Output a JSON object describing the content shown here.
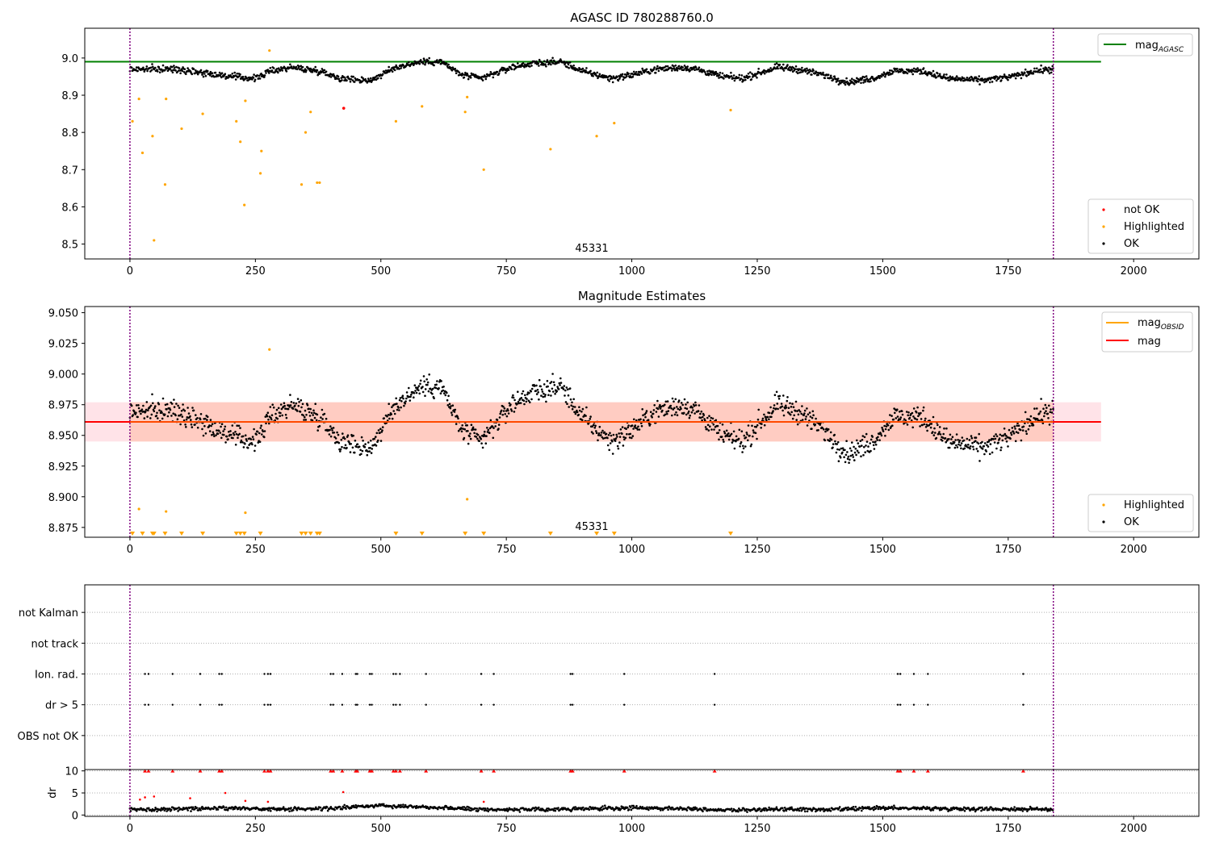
{
  "chart_data": [
    {
      "type": "scatter",
      "title": "AGASC ID 780288760.0",
      "xlabel": "",
      "ylabel": "",
      "xlim": [
        -90,
        2130
      ],
      "ylim": [
        8.46,
        9.08
      ],
      "x_ticks": [
        "0",
        "250",
        "500",
        "750",
        "1000",
        "1250",
        "1500",
        "1750",
        "2000"
      ],
      "y_ticks": [
        "8.5",
        "8.6",
        "8.7",
        "8.8",
        "8.9",
        "9.0"
      ],
      "obsid_label": "45331",
      "obsid_label_x": 920,
      "vertical_lines": [
        0,
        1840
      ],
      "reference_line": {
        "name": "mag_AGASC",
        "value": 8.99,
        "color": "#008000",
        "x_range": [
          -90,
          1935
        ]
      },
      "legend_top": [
        {
          "label": "mag",
          "subscript": "AGASC",
          "color": "#008000"
        }
      ],
      "legend_bottom": [
        {
          "label": "not OK",
          "color": "#ff0000"
        },
        {
          "label": "Highlighted",
          "color": "#ffa500"
        },
        {
          "label": "OK",
          "color": "#000000"
        }
      ],
      "ok_trend": {
        "x": [
          0,
          50,
          100,
          150,
          200,
          250,
          280,
          320,
          380,
          420,
          480,
          530,
          580,
          620,
          660,
          700,
          760,
          800,
          860,
          900,
          960,
          1000,
          1050,
          1100,
          1130,
          1180,
          1220,
          1290,
          1330,
          1380,
          1430,
          1480,
          1520,
          1580,
          1630,
          1700,
          1760,
          1800,
          1840
        ],
        "y": [
          8.97,
          8.97,
          8.97,
          8.96,
          8.95,
          8.945,
          8.965,
          8.975,
          8.965,
          8.945,
          8.94,
          8.975,
          8.99,
          8.99,
          8.955,
          8.945,
          8.975,
          8.985,
          8.99,
          8.965,
          8.945,
          8.955,
          8.97,
          8.975,
          8.97,
          8.95,
          8.945,
          8.975,
          8.97,
          8.955,
          8.935,
          8.945,
          8.965,
          8.965,
          8.945,
          8.94,
          8.95,
          8.965,
          8.97
        ],
        "scatter": 0.011
      },
      "not_ok_points": [
        {
          "x": 426,
          "y": 8.865
        }
      ],
      "highlighted_points": [
        {
          "x": 5,
          "y": 8.83
        },
        {
          "x": 18,
          "y": 8.89
        },
        {
          "x": 25,
          "y": 8.745
        },
        {
          "x": 45,
          "y": 8.79
        },
        {
          "x": 48,
          "y": 8.51
        },
        {
          "x": 70,
          "y": 8.66
        },
        {
          "x": 72,
          "y": 8.89
        },
        {
          "x": 103,
          "y": 8.81
        },
        {
          "x": 145,
          "y": 8.85
        },
        {
          "x": 212,
          "y": 8.83
        },
        {
          "x": 220,
          "y": 8.775
        },
        {
          "x": 228,
          "y": 8.605
        },
        {
          "x": 230,
          "y": 8.885
        },
        {
          "x": 260,
          "y": 8.69
        },
        {
          "x": 262,
          "y": 8.75
        },
        {
          "x": 278,
          "y": 9.02
        },
        {
          "x": 342,
          "y": 8.66
        },
        {
          "x": 350,
          "y": 8.8
        },
        {
          "x": 360,
          "y": 8.855
        },
        {
          "x": 373,
          "y": 8.665
        },
        {
          "x": 378,
          "y": 8.665
        },
        {
          "x": 530,
          "y": 8.83
        },
        {
          "x": 582,
          "y": 8.87
        },
        {
          "x": 668,
          "y": 8.855
        },
        {
          "x": 672,
          "y": 8.895
        },
        {
          "x": 705,
          "y": 8.7
        },
        {
          "x": 838,
          "y": 8.755
        },
        {
          "x": 930,
          "y": 8.79
        },
        {
          "x": 965,
          "y": 8.825
        },
        {
          "x": 1197,
          "y": 8.86
        }
      ]
    },
    {
      "type": "scatter",
      "title": "Magnitude Estimates",
      "xlabel": "",
      "ylabel": "",
      "xlim": [
        -90,
        2130
      ],
      "ylim": [
        8.867,
        9.055
      ],
      "x_ticks": [
        "0",
        "250",
        "500",
        "750",
        "1000",
        "1250",
        "1500",
        "1750",
        "2000"
      ],
      "y_ticks": [
        "8.875",
        "8.900",
        "8.925",
        "8.950",
        "8.975",
        "9.000",
        "9.025",
        "9.050"
      ],
      "obsid_label": "45331",
      "obsid_label_x": 920,
      "vertical_lines": [
        0,
        1840
      ],
      "mag_obsid_line": {
        "value": 8.961,
        "color": "#ffa500"
      },
      "mag_line": {
        "value": 8.961,
        "color": "#ff0000",
        "x_range": [
          -90,
          1935
        ]
      },
      "band": {
        "y_min": 8.945,
        "y_max": 8.977,
        "x_range": [
          -90,
          1935
        ]
      },
      "legend_top": [
        {
          "label": "mag",
          "subscript": "OBSID",
          "color": "#ffa500"
        },
        {
          "label": "mag",
          "subscript": "",
          "color": "#ff0000"
        }
      ],
      "legend_bottom": [
        {
          "label": "Highlighted",
          "color": "#ffa500"
        },
        {
          "label": "OK",
          "color": "#000000"
        }
      ],
      "highlighted_points": [
        {
          "x": 18,
          "y": 8.89
        },
        {
          "x": 72,
          "y": 8.888
        },
        {
          "x": 230,
          "y": 8.887
        },
        {
          "x": 278,
          "y": 9.02
        },
        {
          "x": 672,
          "y": 8.898
        }
      ],
      "out_of_range_markers_x": [
        5,
        25,
        45,
        48,
        70,
        103,
        145,
        212,
        220,
        228,
        260,
        342,
        350,
        360,
        373,
        378,
        530,
        582,
        668,
        705,
        838,
        930,
        965,
        1197
      ]
    },
    {
      "type": "scatter",
      "title": "",
      "xlabel": "",
      "ylabel": "",
      "xlim": [
        -90,
        2130
      ],
      "x_ticks": [
        "0",
        "250",
        "500",
        "750",
        "1000",
        "1250",
        "1500",
        "1750",
        "2000"
      ],
      "vertical_lines": [
        0,
        1840
      ],
      "flag_rows": [
        "not Kalman",
        "not track",
        "Ion. rad.",
        "dr > 5",
        "OBS not OK"
      ],
      "flag_events": {
        "Ion. rad.": [
          30,
          37,
          85,
          140,
          178,
          183,
          268,
          275,
          280,
          400,
          405,
          423,
          450,
          453,
          478,
          482,
          525,
          530,
          538,
          590,
          700,
          725,
          878,
          882,
          985,
          1165,
          1530,
          1535,
          1562,
          1590,
          1780
        ],
        "dr > 5": [
          30,
          37,
          85,
          140,
          178,
          183,
          268,
          275,
          280,
          400,
          405,
          423,
          450,
          453,
          478,
          482,
          525,
          530,
          538,
          590,
          700,
          725,
          878,
          882,
          985,
          1165,
          1530,
          1535,
          1562,
          1590,
          1780
        ]
      }
    },
    {
      "type": "scatter",
      "title": "",
      "xlabel": "",
      "ylabel": "dr",
      "xlim": [
        -90,
        2130
      ],
      "ylim": [
        -0.3,
        10.3
      ],
      "x_ticks": [
        "0",
        "250",
        "500",
        "750",
        "1000",
        "1250",
        "1500",
        "1750",
        "2000"
      ],
      "y_ticks": [
        "0",
        "5",
        "10"
      ],
      "vertical_lines": [
        0,
        1840
      ],
      "dr_trend": {
        "x": [
          0,
          100,
          200,
          300,
          400,
          500,
          600,
          700,
          800,
          900,
          1000,
          1100,
          1200,
          1300,
          1400,
          1500,
          1600,
          1700,
          1840
        ],
        "y": [
          1.2,
          1.4,
          1.6,
          1.3,
          1.5,
          2.2,
          1.8,
          1.3,
          1.2,
          1.4,
          1.6,
          1.5,
          1.1,
          1.3,
          1.2,
          1.6,
          1.5,
          1.4,
          1.3
        ],
        "scatter": 0.5
      },
      "dr_clipped_x": [
        30,
        37,
        85,
        140,
        178,
        183,
        268,
        275,
        280,
        400,
        405,
        423,
        450,
        453,
        478,
        482,
        525,
        530,
        538,
        590,
        700,
        725,
        878,
        882,
        985,
        1165,
        1530,
        1535,
        1562,
        1590,
        1780
      ],
      "dr_red_points": [
        {
          "x": 20,
          "y": 3.5
        },
        {
          "x": 30,
          "y": 4.0
        },
        {
          "x": 48,
          "y": 4.2
        },
        {
          "x": 120,
          "y": 3.8
        },
        {
          "x": 190,
          "y": 5.0
        },
        {
          "x": 230,
          "y": 3.2
        },
        {
          "x": 275,
          "y": 3.0
        },
        {
          "x": 425,
          "y": 5.2
        },
        {
          "x": 705,
          "y": 3.0
        }
      ]
    }
  ]
}
